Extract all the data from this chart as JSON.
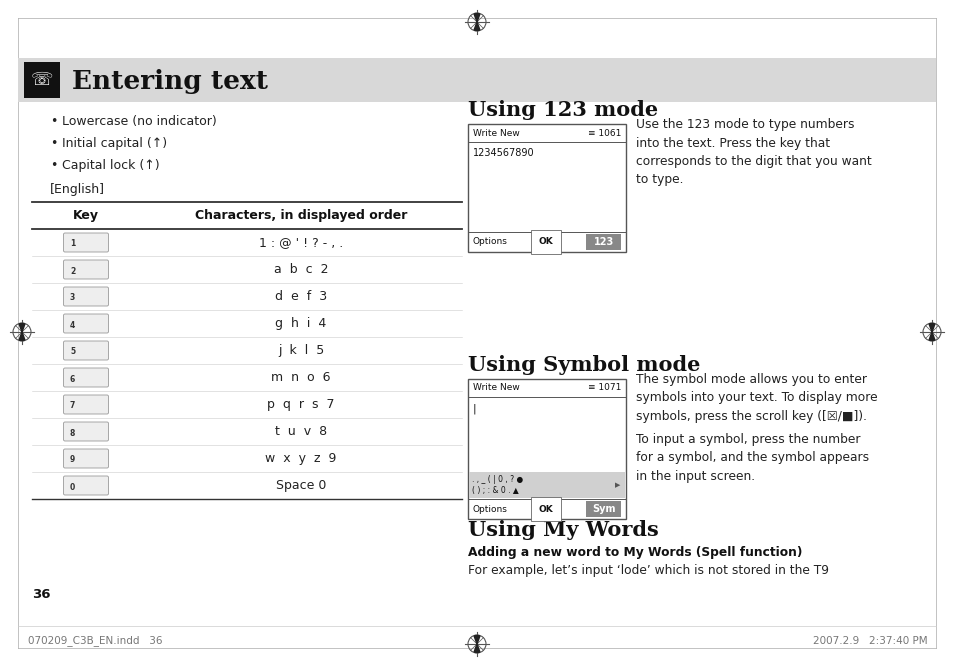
{
  "bg_color": "#ffffff",
  "header_bg": "#d8d8d8",
  "header_text": "Entering text",
  "bullet_items": [
    "Lowercase (no indicator)",
    "Initial capital (↑)",
    "Capital lock (↑)"
  ],
  "english_label": "[English]",
  "table_header": [
    "Key",
    "Characters, in displayed order"
  ],
  "table_rows": [
    [
      "1",
      "1 : @ ' ! ? - , ."
    ],
    [
      "2",
      "a  b  c  2"
    ],
    [
      "3",
      "d  e  f  3"
    ],
    [
      "4",
      "g  h  i  4"
    ],
    [
      "5",
      "j  k  l  5"
    ],
    [
      "6",
      "m  n  o  6"
    ],
    [
      "7",
      "p  q  r  s  7"
    ],
    [
      "8",
      "t  u  v  8"
    ],
    [
      "9",
      "w  x  y  z  9"
    ],
    [
      "0",
      "Space 0"
    ]
  ],
  "section1_title": "Using 123 mode",
  "section1_desc": "Use the 123 mode to type numbers\ninto the text. Press the key that\ncorresponds to the digit that you want\nto type.",
  "screen1_title": "Write New",
  "screen1_num": "≡ 1061",
  "screen1_content": "1234567890",
  "screen1_btn1": "Options",
  "screen1_btn2": "OK",
  "screen1_btn3": "123",
  "section2_title": "Using Symbol mode",
  "section2_desc1": "The symbol mode allows you to enter\nsymbols into your text. To display more\nsymbols, press the scroll key ([☒/■]).",
  "section2_desc2": "To input a symbol, press the number\nfor a symbol, and the symbol appears\nin the input screen.",
  "screen2_title": "Write New",
  "screen2_num": "≡ 1071",
  "screen2_btn1": "Options",
  "screen2_btn2": "OK",
  "screen2_btn3": "Sym",
  "section3_title": "Using My Words",
  "section3_sub": "Adding a new word to My Words (Spell function)",
  "section3_desc": "For example, let’s input ‘lode’ which is not stored in the T9",
  "footer_left": "070209_C3B_EN.indd   36",
  "footer_right": "2007.2.9   2:37:40 PM",
  "page_num": "36"
}
